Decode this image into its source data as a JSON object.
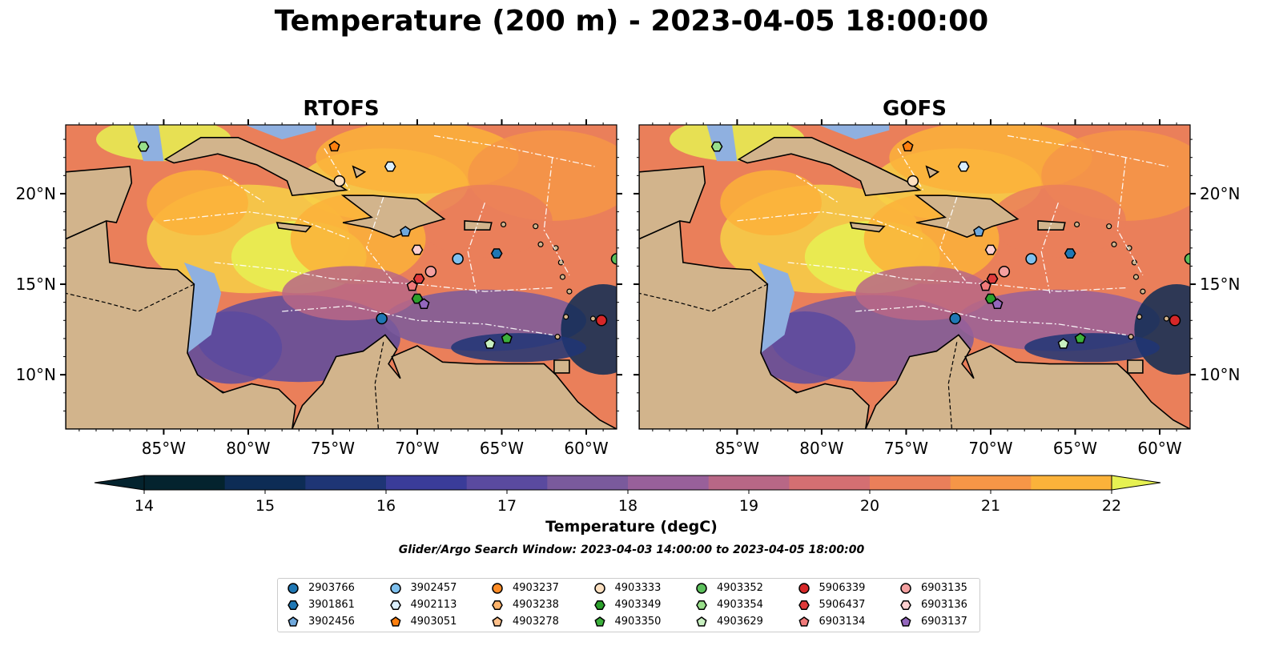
{
  "title": "Temperature (200 m) - 2023-04-05 18:00:00",
  "panels": [
    {
      "name": "RTOFS"
    },
    {
      "name": "GOFS"
    }
  ],
  "axes": {
    "lat_ticks": [
      "10°N",
      "15°N",
      "20°N"
    ],
    "lon_ticks": [
      "85°W",
      "80°W",
      "75°W",
      "70°W",
      "65°W",
      "60°W"
    ],
    "lon_range": [
      -90.8,
      -58.2
    ],
    "lat_range": [
      7.0,
      23.8
    ]
  },
  "colorbar": {
    "label": "Temperature (degC)",
    "range": [
      14,
      22
    ],
    "ticks": [
      "14",
      "15",
      "16",
      "17",
      "18",
      "19",
      "20",
      "21",
      "22"
    ],
    "extend": "both",
    "colormap": "thermal",
    "colors": [
      "#04232e",
      "#0d2c55",
      "#1e3575",
      "#3a3c99",
      "#5a4a9f",
      "#7a5a9c",
      "#98609a",
      "#b86786",
      "#d46f72",
      "#ea7f5a",
      "#f69647",
      "#fbb23a",
      "#f7d046",
      "#e6f152"
    ]
  },
  "search_window": "Glider/Argo Search Window: 2023-04-03 14:00:00 to 2023-04-05 18:00:00",
  "map_colors": {
    "land": "#d2b48c",
    "shelf": "#8fb0e0",
    "border": "#000000",
    "eez": "#ffffff"
  },
  "legend": [
    {
      "id": "2903766",
      "marker": "circle",
      "color": "#1f77b4"
    },
    {
      "id": "3901861",
      "marker": "hexagon",
      "color": "#1f77b4"
    },
    {
      "id": "3902456",
      "marker": "pentagon",
      "color": "#6fa8dc"
    },
    {
      "id": "3902457",
      "marker": "circle",
      "color": "#7ec0ee"
    },
    {
      "id": "4902113",
      "marker": "hexagon",
      "color": "#dbeffc"
    },
    {
      "id": "4903051",
      "marker": "pentagon",
      "color": "#ff7f0e"
    },
    {
      "id": "4903237",
      "marker": "circle",
      "color": "#ff8c26"
    },
    {
      "id": "4903238",
      "marker": "hexagon",
      "color": "#ffb46b"
    },
    {
      "id": "4903278",
      "marker": "pentagon",
      "color": "#ffc08a"
    },
    {
      "id": "4903333",
      "marker": "circle",
      "color": "#fde0c0"
    },
    {
      "id": "4903349",
      "marker": "hexagon",
      "color": "#2ca02c"
    },
    {
      "id": "4903350",
      "marker": "pentagon",
      "color": "#3cb03c"
    },
    {
      "id": "4903352",
      "marker": "circle",
      "color": "#5cc05c"
    },
    {
      "id": "4903354",
      "marker": "hexagon",
      "color": "#98df8a"
    },
    {
      "id": "4903629",
      "marker": "pentagon",
      "color": "#c8f0c0"
    },
    {
      "id": "5906339",
      "marker": "circle",
      "color": "#d62728"
    },
    {
      "id": "5906437",
      "marker": "hexagon",
      "color": "#e03a3a"
    },
    {
      "id": "6903134",
      "marker": "pentagon",
      "color": "#f07a7a"
    },
    {
      "id": "6903135",
      "marker": "circle",
      "color": "#f4a0a0"
    },
    {
      "id": "6903136",
      "marker": "hexagon",
      "color": "#fdd0d0"
    },
    {
      "id": "6903137",
      "marker": "pentagon",
      "color": "#9467bd"
    }
  ],
  "observations": [
    {
      "id": "4903354",
      "lon": -86.2,
      "lat": 22.6
    },
    {
      "id": "4903051",
      "lon": -74.9,
      "lat": 22.6
    },
    {
      "id": "4902113",
      "lon": -71.6,
      "lat": 21.5
    },
    {
      "id": "4903333",
      "lon": -74.6,
      "lat": 20.7
    },
    {
      "id": "3902456",
      "lon": -70.7,
      "lat": 17.9
    },
    {
      "id": "6903136",
      "lon": -70.0,
      "lat": 16.9
    },
    {
      "id": "3902457",
      "lon": -67.6,
      "lat": 16.4
    },
    {
      "id": "3901861",
      "lon": -65.3,
      "lat": 16.7
    },
    {
      "id": "4903352",
      "lon": -58.2,
      "lat": 16.4
    },
    {
      "id": "6903135",
      "lon": -69.2,
      "lat": 15.7
    },
    {
      "id": "5906437",
      "lon": -69.9,
      "lat": 15.3
    },
    {
      "id": "6903134",
      "lon": -70.3,
      "lat": 14.9
    },
    {
      "id": "4903349",
      "lon": -70.0,
      "lat": 14.2
    },
    {
      "id": "6903137",
      "lon": -69.6,
      "lat": 13.9
    },
    {
      "id": "2903766",
      "lon": -72.1,
      "lat": 13.1
    },
    {
      "id": "5906339",
      "lon": -59.1,
      "lat": 13.0
    },
    {
      "id": "4903350",
      "lon": -64.7,
      "lat": 12.0
    },
    {
      "id": "4903629",
      "lon": -65.7,
      "lat": 11.7
    }
  ]
}
